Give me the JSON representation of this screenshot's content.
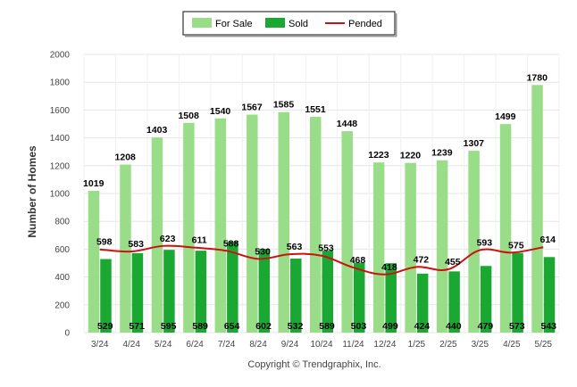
{
  "chart_data": {
    "type": "bar",
    "categories": [
      "3/24",
      "4/24",
      "5/24",
      "6/24",
      "7/24",
      "8/24",
      "9/24",
      "10/24",
      "11/24",
      "12/24",
      "1/25",
      "2/25",
      "3/25",
      "4/25",
      "5/25"
    ],
    "series": [
      {
        "name": "For Sale",
        "type": "bar",
        "color": "#99dd88",
        "values": [
          1019,
          1208,
          1403,
          1508,
          1540,
          1567,
          1585,
          1551,
          1448,
          1223,
          1220,
          1239,
          1307,
          1499,
          1780
        ]
      },
      {
        "name": "Sold",
        "type": "bar",
        "color": "#1aa833",
        "values": [
          529,
          571,
          595,
          589,
          654,
          602,
          532,
          589,
          503,
          499,
          424,
          440,
          479,
          573,
          543
        ]
      },
      {
        "name": "Pended",
        "type": "line",
        "color": "#cc1111",
        "values": [
          598,
          583,
          623,
          611,
          588,
          530,
          563,
          553,
          468,
          418,
          472,
          455,
          593,
          575,
          614
        ]
      }
    ],
    "ylabel": "Number of Homes",
    "ylim": [
      0,
      2000
    ],
    "yticks": [
      0,
      200,
      400,
      600,
      800,
      1000,
      1200,
      1400,
      1600,
      1800,
      2000
    ],
    "grid": true,
    "legend": "top-center"
  },
  "footer": "Copyright © Trendgraphix, Inc."
}
